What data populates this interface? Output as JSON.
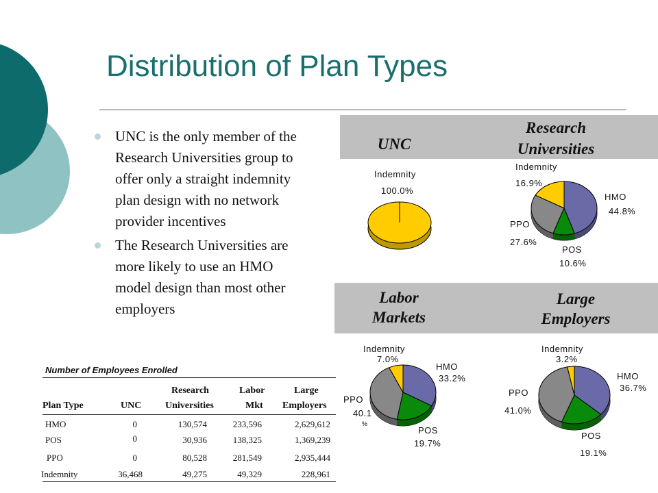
{
  "slide": {
    "title": "Distribution of Plan Types",
    "bullets": [
      "UNC is the only member of the Research Universities group to offer only a straight indemnity plan design with no network provider incentives",
      "The Research Universities are more likely to use an HMO model design than most other employers"
    ]
  },
  "colors": {
    "theme_dark": "#0e6b6b",
    "theme_light": "#8fc3c3",
    "band": "#bfbfbf",
    "hmo": "#6a6aa8",
    "pos": "#0a8a0a",
    "ppo": "#888888",
    "indemnity": "#ffcc00"
  },
  "panels": {
    "unc": {
      "title": "UNC",
      "labels": {
        "indemnity_name": "Indemnity",
        "indemnity_pct": "100.0%"
      }
    },
    "research": {
      "title_line1": "Research",
      "title_line2": "Universities",
      "labels": {
        "indemnity_name": "Indemnity",
        "indemnity_pct": "16.9%",
        "hmo_name": "HMO",
        "hmo_pct": "44.8%",
        "ppo_name": "PPO",
        "ppo_pct": "27.6%",
        "pos_name": "POS",
        "pos_pct": "10.6%"
      }
    },
    "labor": {
      "title_line1": "Labor",
      "title_line2": "Markets",
      "labels": {
        "indemnity_name": "Indemnity",
        "indemnity_pct": "7.0%",
        "hmo_name": "HMO",
        "hmo_pct": "33.2%",
        "ppo_name": "PPO",
        "ppo_pct_a": "40.1",
        "ppo_pct_b": "%",
        "pos_name": "POS",
        "pos_pct": "19.7%"
      }
    },
    "large": {
      "title_line1": "Large",
      "title_line2": "Employers",
      "labels": {
        "indemnity_name": "Indemnity",
        "indemnity_pct": "3.2%",
        "hmo_name": "HMO",
        "hmo_pct": "36.7%",
        "ppo_name": "PPO",
        "ppo_pct": "41.0%",
        "pos_name": "POS",
        "pos_pct": "19.1%"
      }
    }
  },
  "chart_data": [
    {
      "type": "pie",
      "categories": [
        "Indemnity"
      ],
      "values": [
        100.0
      ]
    },
    {
      "type": "pie",
      "categories": [
        "HMO",
        "POS",
        "PPO",
        "Indemnity"
      ],
      "values": [
        44.8,
        10.6,
        27.6,
        16.9
      ]
    },
    {
      "type": "pie",
      "categories": [
        "HMO",
        "POS",
        "PPO",
        "Indemnity"
      ],
      "values": [
        33.2,
        19.7,
        40.1,
        7.0
      ]
    },
    {
      "type": "pie",
      "categories": [
        "HMO",
        "POS",
        "PPO",
        "Indemnity"
      ],
      "values": [
        36.7,
        19.1,
        41.0,
        3.2
      ]
    }
  ],
  "table": {
    "title": "Number of Employees Enrolled",
    "headers": {
      "plan_type": "Plan Type",
      "unc": "UNC",
      "research_1": "Research",
      "research_2": "Universities",
      "labor_1": "Labor",
      "labor_2": "Mkt",
      "large_1": "Large",
      "large_2": "Employers"
    },
    "rows": [
      {
        "plan": "HMO",
        "unc": "0",
        "research": "130,574",
        "labor": "233,596",
        "large": "2,629,612"
      },
      {
        "plan": "POS",
        "unc": "0",
        "research": "30,936",
        "labor": "138,325",
        "large": "1,369,239"
      },
      {
        "plan": "PPO",
        "unc": "0",
        "research": "80,528",
        "labor": "281,549",
        "large": "2,935,444"
      },
      {
        "plan": "Indemnity",
        "unc": "36,468",
        "research": "49,275",
        "labor": "49,329",
        "large": "228,961"
      }
    ]
  }
}
